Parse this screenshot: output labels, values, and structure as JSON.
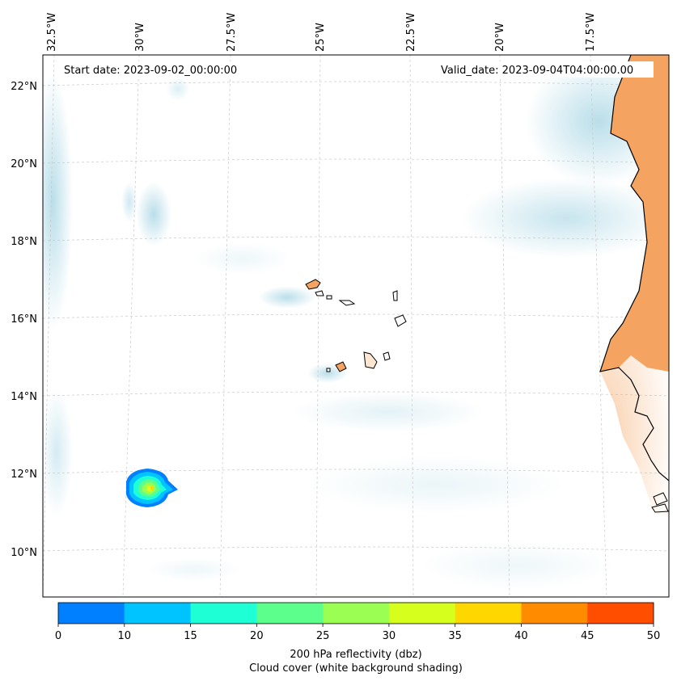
{
  "map": {
    "start_date": "Start date: 2023-09-02_00:00:00",
    "valid_date": "Valid_date: 2023-09-04T04:00:00.00",
    "longitude_labels": [
      "32.5°W",
      "30°W",
      "27.5°W",
      "25°W",
      "22.5°W",
      "20°W",
      "17.5°W"
    ],
    "latitude_labels": [
      "22°N",
      "20°N",
      "18°N",
      "16°N",
      "14°N",
      "12°N",
      "10°N"
    ]
  },
  "colorbar": {
    "ticks": [
      "0",
      "10",
      "15",
      "20",
      "25",
      "30",
      "35",
      "40",
      "45",
      "50"
    ],
    "colors": [
      "#0080ff",
      "#00c4ff",
      "#1effd6",
      "#5cff8c",
      "#9aff52",
      "#d6ff1e",
      "#ffd700",
      "#ff8c00",
      "#ff4e00"
    ],
    "label_line1": "200 hPa reflectivity (dbz)",
    "label_line2": "Cloud cover (white background shading)"
  },
  "colors": {
    "land": "#f4a460",
    "cloud": "#add8e6",
    "coast": "#000000",
    "grid": "#cccccc"
  }
}
